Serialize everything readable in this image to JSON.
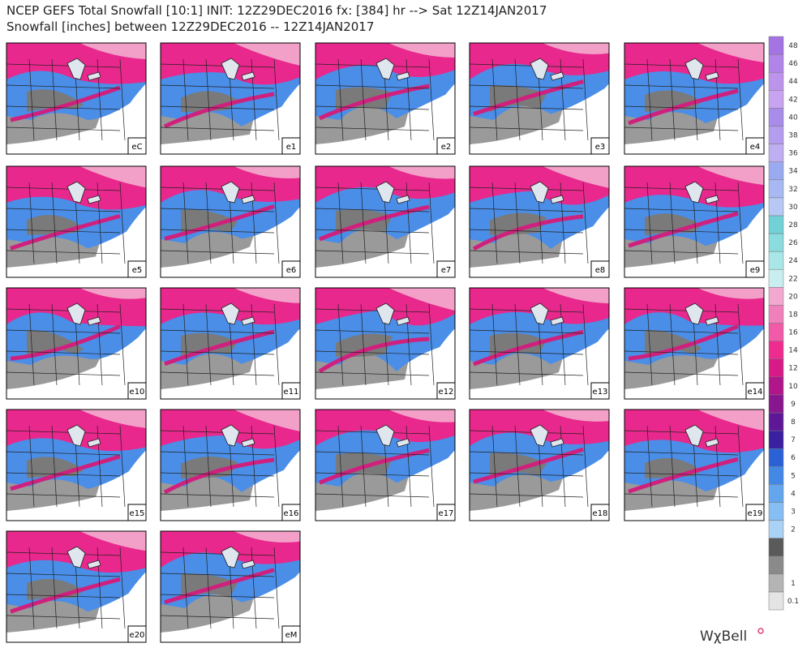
{
  "header": {
    "line1": "NCEP GEFS Total Snowfall [10:1] INIT: 12Z29DEC2016 fx: [384] hr --> Sat 12Z14JAN2017",
    "line2": "Snowfall [inches] between 12Z29DEC2016 -- 12Z14JAN2017"
  },
  "panels": [
    "eC",
    "e1",
    "e2",
    "e3",
    "e4",
    "e5",
    "e6",
    "e7",
    "e8",
    "e9",
    "e10",
    "e11",
    "e12",
    "e13",
    "e14",
    "e15",
    "e16",
    "e17",
    "e18",
    "e19",
    "e20",
    "eM"
  ],
  "colorbar": [
    {
      "label": "0.1",
      "color": "#e4e4e4"
    },
    {
      "label": "1",
      "color": "#b4b4b4"
    },
    {
      "label": "",
      "color": "#8a8a8a"
    },
    {
      "label": "",
      "color": "#5a5a5a"
    },
    {
      "label": "2",
      "color": "#a9d2f5"
    },
    {
      "label": "3",
      "color": "#86bdf2"
    },
    {
      "label": "4",
      "color": "#64a6ee"
    },
    {
      "label": "5",
      "color": "#4488e6"
    },
    {
      "label": "6",
      "color": "#2a62d6"
    },
    {
      "label": "7",
      "color": "#3a1fa0"
    },
    {
      "label": "8",
      "color": "#5e1897"
    },
    {
      "label": "9",
      "color": "#8a168f"
    },
    {
      "label": "10",
      "color": "#b0168a"
    },
    {
      "label": "12",
      "color": "#d61a88"
    },
    {
      "label": "14",
      "color": "#ee2c8f"
    },
    {
      "label": "16",
      "color": "#f05aa8"
    },
    {
      "label": "18",
      "color": "#f080bb"
    },
    {
      "label": "20",
      "color": "#f2a8cf"
    },
    {
      "label": "22",
      "color": "#c8eef0"
    },
    {
      "label": "24",
      "color": "#a8e6e8"
    },
    {
      "label": "26",
      "color": "#8adcdf"
    },
    {
      "label": "28",
      "color": "#70d2d6"
    },
    {
      "label": "30",
      "color": "#b8c8f4"
    },
    {
      "label": "32",
      "color": "#a8b8f2"
    },
    {
      "label": "34",
      "color": "#9aaaf0"
    },
    {
      "label": "36",
      "color": "#c0aef2"
    },
    {
      "label": "38",
      "color": "#b49cee"
    },
    {
      "label": "40",
      "color": "#a88cea"
    },
    {
      "label": "42",
      "color": "#c8a4f0"
    },
    {
      "label": "44",
      "color": "#bc94ec"
    },
    {
      "label": "46",
      "color": "#b084e8"
    },
    {
      "label": "48",
      "color": "#a474e4"
    }
  ],
  "watermark": "WχBell"
}
